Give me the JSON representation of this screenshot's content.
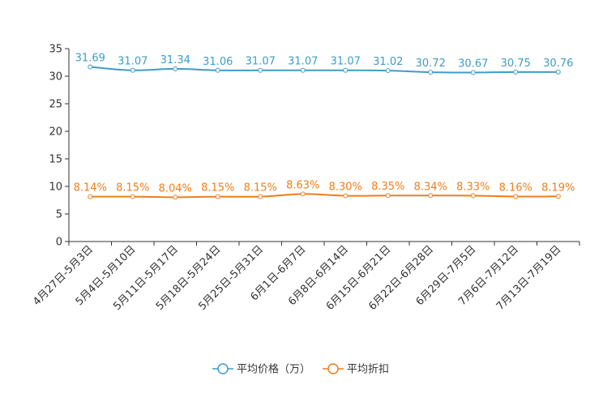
{
  "chart_data": {
    "type": "line",
    "categories": [
      "4月27日-5月3日",
      "5月4日-5月10日",
      "5月11日-5月17日",
      "5月18日-5月24日",
      "5月25日-5月31日",
      "6月1日-6月7日",
      "6月8日-6月14日",
      "6月15日-6月21日",
      "6月22日-6月28日",
      "6月29日-7月5日",
      "7月6日-7月12日",
      "7月13日-7月19日"
    ],
    "ylim": [
      0,
      35
    ],
    "yticks": [
      "0",
      "5",
      "10",
      "15",
      "20",
      "25",
      "30",
      "35"
    ],
    "series": [
      {
        "name": "平均价格（万）",
        "color": "#3d9ccb",
        "values": [
          31.69,
          31.07,
          31.34,
          31.06,
          31.07,
          31.07,
          31.07,
          31.02,
          30.72,
          30.67,
          30.75,
          30.76
        ],
        "labels": [
          "31.69",
          "31.07",
          "31.34",
          "31.06",
          "31.07",
          "31.07",
          "31.07",
          "31.02",
          "30.72",
          "30.67",
          "30.75",
          "30.76"
        ]
      },
      {
        "name": "平均折扣",
        "color": "#f07d1a",
        "values": [
          8.14,
          8.15,
          8.04,
          8.15,
          8.15,
          8.63,
          8.3,
          8.35,
          8.34,
          8.33,
          8.16,
          8.19
        ],
        "labels": [
          "8.14%",
          "8.15%",
          "8.04%",
          "8.15%",
          "8.15%",
          "8.63%",
          "8.30%",
          "8.35%",
          "8.34%",
          "8.33%",
          "8.16%",
          "8.19%"
        ]
      }
    ],
    "title": "",
    "xlabel": "",
    "ylabel": "",
    "legend_position": "bottom-center"
  }
}
